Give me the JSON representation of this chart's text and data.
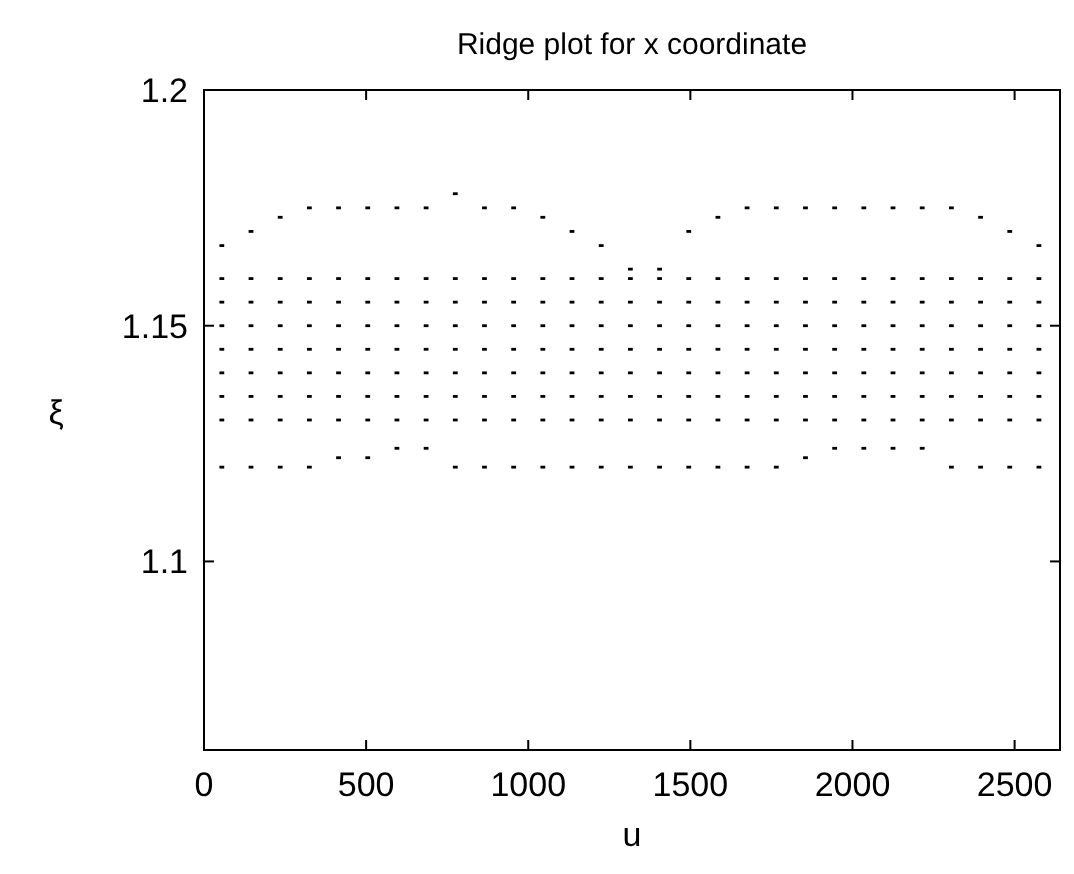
{
  "chart_data": {
    "type": "scatter",
    "title": "Ridge plot for x coordinate",
    "xlabel": "u",
    "ylabel": "ξ",
    "xlim": [
      0,
      2640
    ],
    "ylim": [
      1.06,
      1.2
    ],
    "xticks": [
      0,
      500,
      1000,
      1500,
      2000,
      2500
    ],
    "yticks": [
      1.1,
      1.15,
      1.2
    ],
    "marker": "square",
    "grid": false,
    "series": [
      {
        "color": "#000000",
        "x": [
          55,
          55,
          55,
          55,
          55,
          55,
          55,
          55,
          55,
          145,
          145,
          145,
          145,
          145,
          145,
          145,
          145,
          145,
          235,
          235,
          235,
          235,
          235,
          235,
          235,
          235,
          235,
          325,
          325,
          325,
          325,
          325,
          325,
          325,
          325,
          325,
          415,
          415,
          415,
          415,
          415,
          415,
          415,
          415,
          415,
          505,
          505,
          505,
          505,
          505,
          505,
          505,
          505,
          505,
          595,
          595,
          595,
          595,
          595,
          595,
          595,
          595,
          595,
          685,
          685,
          685,
          685,
          685,
          685,
          685,
          685,
          685,
          775,
          775,
          775,
          775,
          775,
          775,
          775,
          775,
          775,
          865,
          865,
          865,
          865,
          865,
          865,
          865,
          865,
          865,
          955,
          955,
          955,
          955,
          955,
          955,
          955,
          955,
          955,
          1045,
          1045,
          1045,
          1045,
          1045,
          1045,
          1045,
          1045,
          1045,
          1135,
          1135,
          1135,
          1135,
          1135,
          1135,
          1135,
          1135,
          1135,
          1225,
          1225,
          1225,
          1225,
          1225,
          1225,
          1225,
          1225,
          1225,
          1315,
          1315,
          1315,
          1315,
          1315,
          1315,
          1315,
          1315,
          1315,
          1405,
          1405,
          1405,
          1405,
          1405,
          1405,
          1405,
          1405,
          1405,
          1495,
          1495,
          1495,
          1495,
          1495,
          1495,
          1495,
          1495,
          1495,
          1585,
          1585,
          1585,
          1585,
          1585,
          1585,
          1585,
          1585,
          1585,
          1675,
          1675,
          1675,
          1675,
          1675,
          1675,
          1675,
          1675,
          1675,
          1765,
          1765,
          1765,
          1765,
          1765,
          1765,
          1765,
          1765,
          1765,
          1855,
          1855,
          1855,
          1855,
          1855,
          1855,
          1855,
          1855,
          1855,
          1945,
          1945,
          1945,
          1945,
          1945,
          1945,
          1945,
          1945,
          1945,
          2035,
          2035,
          2035,
          2035,
          2035,
          2035,
          2035,
          2035,
          2035,
          2125,
          2125,
          2125,
          2125,
          2125,
          2125,
          2125,
          2125,
          2125,
          2215,
          2215,
          2215,
          2215,
          2215,
          2215,
          2215,
          2215,
          2215,
          2305,
          2305,
          2305,
          2305,
          2305,
          2305,
          2305,
          2305,
          2305,
          2395,
          2395,
          2395,
          2395,
          2395,
          2395,
          2395,
          2395,
          2395,
          2485,
          2485,
          2485,
          2485,
          2485,
          2485,
          2485,
          2485,
          2485,
          2575,
          2575,
          2575,
          2575,
          2575,
          2575,
          2575,
          2575,
          2575
        ],
        "values": [
          1.12,
          1.13,
          1.135,
          1.14,
          1.145,
          1.15,
          1.155,
          1.16,
          1.167,
          1.12,
          1.13,
          1.135,
          1.14,
          1.145,
          1.15,
          1.155,
          1.16,
          1.17,
          1.12,
          1.13,
          1.135,
          1.14,
          1.145,
          1.15,
          1.155,
          1.16,
          1.173,
          1.12,
          1.13,
          1.135,
          1.14,
          1.145,
          1.15,
          1.155,
          1.16,
          1.175,
          1.122,
          1.13,
          1.135,
          1.14,
          1.145,
          1.15,
          1.155,
          1.16,
          1.175,
          1.122,
          1.13,
          1.135,
          1.14,
          1.145,
          1.15,
          1.155,
          1.16,
          1.175,
          1.124,
          1.13,
          1.135,
          1.14,
          1.145,
          1.15,
          1.155,
          1.16,
          1.175,
          1.124,
          1.13,
          1.135,
          1.14,
          1.145,
          1.15,
          1.155,
          1.16,
          1.175,
          1.12,
          1.13,
          1.135,
          1.14,
          1.145,
          1.15,
          1.155,
          1.16,
          1.178,
          1.12,
          1.13,
          1.135,
          1.14,
          1.145,
          1.15,
          1.155,
          1.16,
          1.175,
          1.12,
          1.13,
          1.135,
          1.14,
          1.145,
          1.15,
          1.155,
          1.16,
          1.175,
          1.12,
          1.13,
          1.135,
          1.14,
          1.145,
          1.15,
          1.155,
          1.16,
          1.173,
          1.12,
          1.13,
          1.135,
          1.14,
          1.145,
          1.15,
          1.155,
          1.16,
          1.17,
          1.12,
          1.13,
          1.135,
          1.14,
          1.145,
          1.15,
          1.155,
          1.16,
          1.167,
          1.12,
          1.13,
          1.135,
          1.14,
          1.145,
          1.15,
          1.155,
          1.16,
          1.162,
          1.12,
          1.13,
          1.135,
          1.14,
          1.145,
          1.15,
          1.155,
          1.16,
          1.162,
          1.12,
          1.13,
          1.135,
          1.14,
          1.145,
          1.15,
          1.155,
          1.16,
          1.17,
          1.12,
          1.13,
          1.135,
          1.14,
          1.145,
          1.15,
          1.155,
          1.16,
          1.173,
          1.12,
          1.13,
          1.135,
          1.14,
          1.145,
          1.15,
          1.155,
          1.16,
          1.175,
          1.12,
          1.13,
          1.135,
          1.14,
          1.145,
          1.15,
          1.155,
          1.16,
          1.175,
          1.122,
          1.13,
          1.135,
          1.14,
          1.145,
          1.15,
          1.155,
          1.16,
          1.175,
          1.124,
          1.13,
          1.135,
          1.14,
          1.145,
          1.15,
          1.155,
          1.16,
          1.175,
          1.124,
          1.13,
          1.135,
          1.14,
          1.145,
          1.15,
          1.155,
          1.16,
          1.175,
          1.124,
          1.13,
          1.135,
          1.14,
          1.145,
          1.15,
          1.155,
          1.16,
          1.175,
          1.124,
          1.13,
          1.135,
          1.14,
          1.145,
          1.15,
          1.155,
          1.16,
          1.175,
          1.12,
          1.13,
          1.135,
          1.14,
          1.145,
          1.15,
          1.155,
          1.16,
          1.175,
          1.12,
          1.13,
          1.135,
          1.14,
          1.145,
          1.15,
          1.155,
          1.16,
          1.173,
          1.12,
          1.13,
          1.135,
          1.14,
          1.145,
          1.15,
          1.155,
          1.16,
          1.17,
          1.12,
          1.13,
          1.135,
          1.14,
          1.145,
          1.15,
          1.155,
          1.16,
          1.167
        ]
      }
    ]
  }
}
